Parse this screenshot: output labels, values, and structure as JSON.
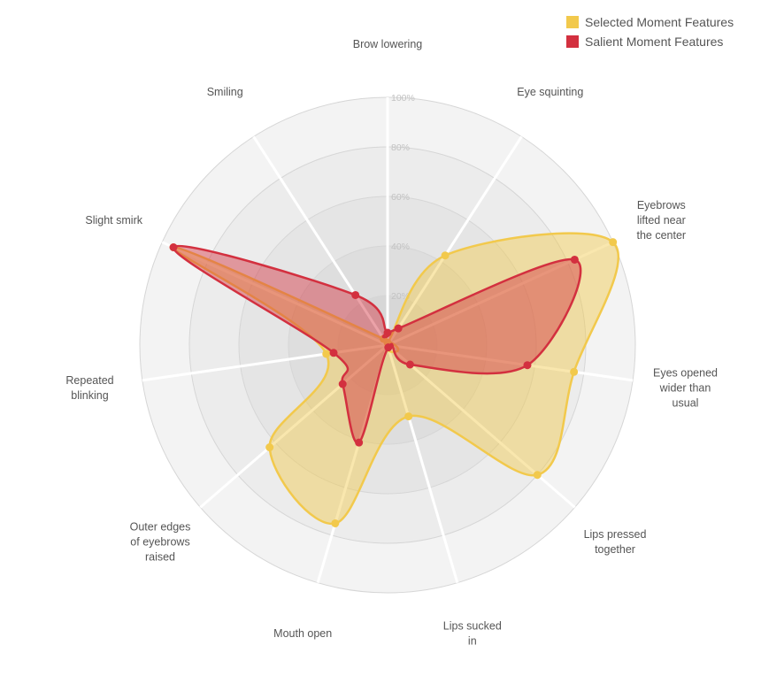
{
  "chart_data": {
    "type": "radar",
    "axes": [
      "Brow lowering",
      "Eye squinting",
      "Eyebrows lifted near the center",
      "Eyes opened wider than usual",
      "Lips pressed together",
      "Lips sucked in",
      "Mouth open",
      "Outer edges of eyebrows raised",
      "Repeated blinking",
      "Slight smirk",
      "Smiling"
    ],
    "range": [
      0,
      100
    ],
    "ticks": [
      "20%",
      "40%",
      "60%",
      "80%",
      "100%"
    ],
    "series": [
      {
        "name": "Selected Moment Features",
        "color": "#f2c94c",
        "values": [
          1,
          43,
          100,
          76,
          80,
          30,
          75,
          63,
          25,
          95,
          3
        ]
      },
      {
        "name": "Salient Moment Features",
        "color": "#d3303f",
        "values": [
          5,
          8,
          83,
          57,
          12,
          1,
          41,
          24,
          22,
          95,
          24
        ]
      }
    ]
  }
}
